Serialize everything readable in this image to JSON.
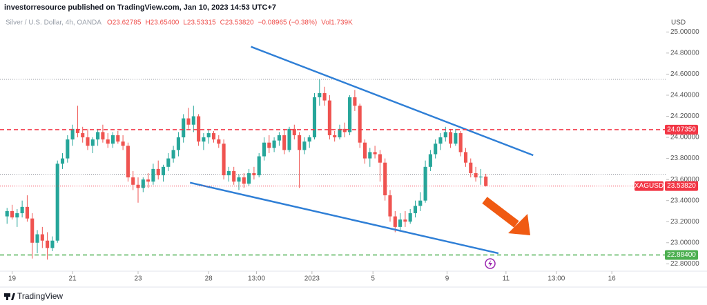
{
  "header": {
    "publisher": "investorresource published on TradingView.com, Jan 10, 2023 14:53 UTC+7"
  },
  "footer": {
    "brand": "TradingView"
  },
  "chart_data": {
    "type": "candlestick",
    "title": "Silver / U.S. Dollar, 4h, OANDA",
    "ohlc_legend": [
      "O23.62785",
      "H23.65400",
      "L23.53315",
      "C23.53820",
      "−0.08965 (−0.38%)",
      "Vol1.739K"
    ],
    "y_axis_label": "USD",
    "up_color": "#26a69a",
    "down_color": "#ef5350",
    "candles": [
      [
        23.25,
        23.33,
        23.18,
        23.3
      ],
      [
        23.3,
        23.36,
        23.22,
        23.24
      ],
      [
        23.24,
        23.32,
        23.15,
        23.28
      ],
      [
        23.28,
        23.4,
        23.24,
        23.34
      ],
      [
        23.34,
        23.45,
        23.2,
        23.23
      ],
      [
        23.23,
        23.28,
        22.85,
        23.0
      ],
      [
        23.0,
        23.12,
        22.9,
        23.08
      ],
      [
        23.08,
        23.15,
        22.95,
        23.02
      ],
      [
        23.02,
        23.1,
        22.84,
        22.95
      ],
      [
        22.95,
        23.06,
        22.92,
        23.02
      ],
      [
        23.02,
        23.78,
        23.0,
        23.75
      ],
      [
        23.75,
        23.85,
        23.7,
        23.8
      ],
      [
        23.8,
        24.02,
        23.76,
        23.98
      ],
      [
        23.98,
        24.12,
        23.92,
        24.08
      ],
      [
        24.08,
        24.3,
        24.0,
        24.04
      ],
      [
        24.04,
        24.1,
        23.95,
        24.0
      ],
      [
        24.0,
        24.08,
        23.88,
        23.92
      ],
      [
        23.92,
        24.0,
        23.85,
        23.98
      ],
      [
        23.98,
        24.08,
        23.92,
        24.05
      ],
      [
        24.05,
        24.12,
        23.95,
        23.98
      ],
      [
        23.98,
        24.04,
        23.9,
        23.94
      ],
      [
        23.94,
        24.05,
        23.9,
        24.02
      ],
      [
        24.02,
        24.06,
        23.94,
        23.96
      ],
      [
        23.96,
        24.02,
        23.88,
        23.92
      ],
      [
        23.92,
        23.95,
        23.58,
        23.62
      ],
      [
        23.62,
        23.68,
        23.5,
        23.55
      ],
      [
        23.55,
        23.62,
        23.38,
        23.52
      ],
      [
        23.52,
        23.62,
        23.48,
        23.6
      ],
      [
        23.6,
        23.66,
        23.52,
        23.58
      ],
      [
        23.58,
        23.75,
        23.55,
        23.7
      ],
      [
        23.7,
        23.78,
        23.6,
        23.64
      ],
      [
        23.64,
        23.74,
        23.58,
        23.72
      ],
      [
        23.72,
        23.85,
        23.68,
        23.8
      ],
      [
        23.8,
        23.92,
        23.76,
        23.88
      ],
      [
        23.88,
        24.05,
        23.82,
        24.0
      ],
      [
        24.0,
        24.22,
        23.95,
        24.18
      ],
      [
        24.18,
        24.28,
        24.08,
        24.12
      ],
      [
        24.12,
        24.3,
        24.05,
        24.2
      ],
      [
        24.2,
        24.22,
        23.92,
        23.96
      ],
      [
        23.96,
        24.04,
        23.88,
        24.0
      ],
      [
        24.0,
        24.08,
        23.94,
        24.04
      ],
      [
        24.04,
        24.06,
        23.95,
        23.98
      ],
      [
        23.98,
        24.02,
        23.9,
        23.94
      ],
      [
        23.94,
        23.98,
        23.6,
        23.64
      ],
      [
        23.64,
        23.72,
        23.58,
        23.68
      ],
      [
        23.68,
        23.72,
        23.55,
        23.58
      ],
      [
        23.58,
        23.65,
        23.5,
        23.62
      ],
      [
        23.62,
        23.66,
        23.52,
        23.56
      ],
      [
        23.56,
        23.7,
        23.54,
        23.66
      ],
      [
        23.66,
        23.72,
        23.6,
        23.64
      ],
      [
        23.64,
        23.85,
        23.62,
        23.82
      ],
      [
        23.82,
        24.0,
        23.78,
        23.95
      ],
      [
        23.95,
        24.02,
        23.85,
        23.9
      ],
      [
        23.9,
        24.0,
        23.86,
        23.97
      ],
      [
        23.97,
        24.05,
        23.92,
        24.02
      ],
      [
        24.02,
        24.08,
        23.84,
        23.88
      ],
      [
        23.88,
        24.1,
        23.86,
        24.08
      ],
      [
        24.08,
        24.12,
        23.98,
        24.02
      ],
      [
        24.02,
        24.05,
        23.52,
        23.88
      ],
      [
        23.88,
        24.0,
        23.84,
        23.96
      ],
      [
        23.96,
        24.02,
        23.9,
        24.0
      ],
      [
        24.0,
        24.42,
        23.98,
        24.38
      ],
      [
        24.38,
        24.55,
        24.3,
        24.42
      ],
      [
        24.42,
        24.48,
        24.3,
        24.35
      ],
      [
        24.35,
        24.4,
        23.98,
        24.02
      ],
      [
        24.02,
        24.06,
        23.96,
        24.0
      ],
      [
        24.0,
        24.12,
        23.98,
        24.08
      ],
      [
        24.08,
        24.14,
        24.0,
        24.05
      ],
      [
        24.05,
        24.4,
        24.02,
        24.38
      ],
      [
        24.38,
        24.45,
        24.25,
        24.3
      ],
      [
        24.3,
        24.32,
        23.9,
        23.95
      ],
      [
        23.95,
        23.98,
        23.75,
        23.8
      ],
      [
        23.8,
        23.9,
        23.72,
        23.86
      ],
      [
        23.86,
        23.92,
        23.8,
        23.84
      ],
      [
        23.84,
        23.88,
        23.58,
        23.76
      ],
      [
        23.76,
        23.8,
        23.4,
        23.45
      ],
      [
        23.45,
        23.5,
        23.2,
        23.25
      ],
      [
        23.25,
        23.3,
        23.1,
        23.15
      ],
      [
        23.15,
        23.28,
        23.12,
        23.22
      ],
      [
        23.22,
        23.3,
        23.15,
        23.2
      ],
      [
        23.2,
        23.32,
        23.18,
        23.28
      ],
      [
        23.28,
        23.4,
        23.24,
        23.35
      ],
      [
        23.35,
        23.48,
        23.3,
        23.4
      ],
      [
        23.4,
        23.78,
        23.38,
        23.72
      ],
      [
        23.72,
        23.88,
        23.68,
        23.84
      ],
      [
        23.84,
        23.98,
        23.8,
        23.94
      ],
      [
        23.94,
        24.04,
        23.88,
        24.0
      ],
      [
        24.0,
        24.1,
        23.96,
        24.05
      ],
      [
        24.05,
        24.08,
        23.9,
        23.94
      ],
      [
        23.94,
        24.08,
        23.92,
        24.04
      ],
      [
        24.04,
        24.06,
        23.82,
        23.86
      ],
      [
        23.86,
        23.9,
        23.72,
        23.76
      ],
      [
        23.76,
        23.8,
        23.62,
        23.66
      ],
      [
        23.66,
        23.72,
        23.58,
        23.62
      ],
      [
        23.62,
        23.7,
        23.55,
        23.62785
      ],
      [
        23.62785,
        23.654,
        23.53315,
        23.5382
      ]
    ],
    "xlim": [
      -1.4,
      130.8
    ],
    "xticks": [
      {
        "value": 1,
        "label": "19"
      },
      {
        "value": 13,
        "label": "21"
      },
      {
        "value": 26,
        "label": "23"
      },
      {
        "value": 40,
        "label": "28"
      },
      {
        "value": 49.5,
        "label": "13:00"
      },
      {
        "value": 60.5,
        "label": "2023"
      },
      {
        "value": 72.6,
        "label": "5"
      },
      {
        "value": 87.3,
        "label": "9"
      },
      {
        "value": 99,
        "label": "11"
      },
      {
        "value": 109,
        "label": "13:00"
      },
      {
        "value": 120,
        "label": "16"
      }
    ],
    "ylim": [
      22.73,
      25.12
    ],
    "yticks": [
      {
        "value": 22.8,
        "label": "22.80000"
      },
      {
        "value": 23,
        "label": "23.00000"
      },
      {
        "value": 23.2,
        "label": "23.20000"
      },
      {
        "value": 23.4,
        "label": "23.40000"
      },
      {
        "value": 23.6,
        "label": "23.60000"
      },
      {
        "value": 23.8,
        "label": "23.80000"
      },
      {
        "value": 24,
        "label": "24.00000"
      },
      {
        "value": 24.2,
        "label": "24.20000"
      },
      {
        "value": 24.4,
        "label": "24.40000"
      },
      {
        "value": 24.6,
        "label": "24.60000"
      },
      {
        "value": 24.8,
        "label": "24.80000"
      },
      {
        "value": 25,
        "label": "25.00000"
      }
    ],
    "reference_lines": [
      24.55,
      23.65
    ],
    "levels": [
      {
        "value": 24.0735,
        "label": "24.07350",
        "color": "#f23645"
      },
      {
        "value": 22.884,
        "label": "22.88400",
        "color": "#4caf50"
      }
    ],
    "last_price": {
      "value": 23.5382,
      "label": "23.53820",
      "symbol": "XAGUSD",
      "color": "#f23645"
    },
    "trendlines": [
      {
        "x": [
          48.4,
          104.4
        ],
        "y": [
          24.86,
          23.83
        ],
        "color": "#2f7fd6"
      },
      {
        "x": [
          36.3,
          97.5
        ],
        "y": [
          23.57,
          22.9
        ],
        "color": "#2f7fd6"
      }
    ]
  }
}
